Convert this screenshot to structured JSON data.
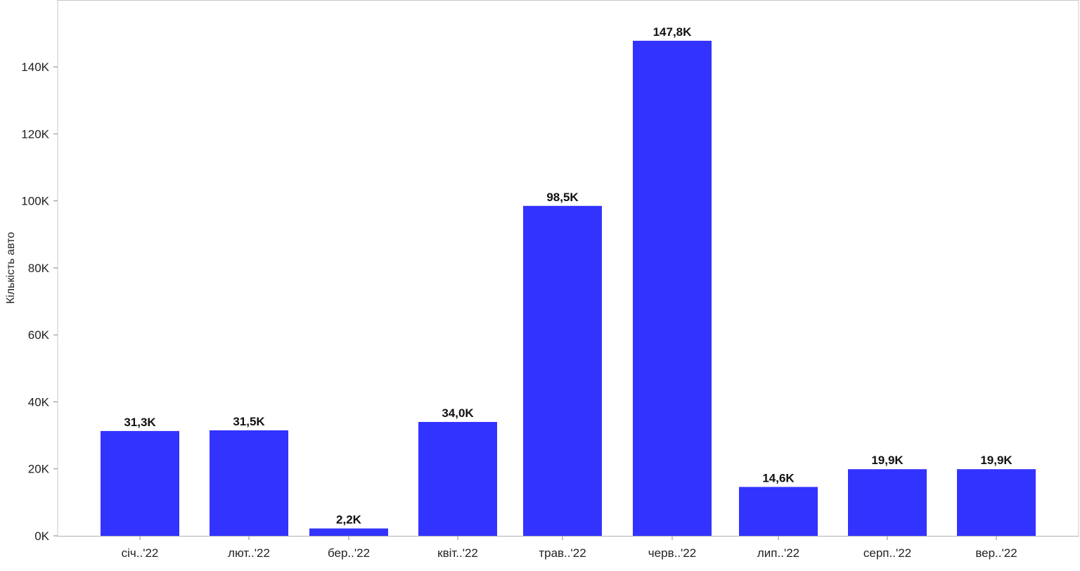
{
  "chart_data": {
    "type": "bar",
    "title": "",
    "xlabel": "",
    "ylabel": "Кількість авто",
    "ylim": [
      0,
      148000
    ],
    "yticks": [
      0,
      20000,
      40000,
      60000,
      80000,
      100000,
      120000,
      140000
    ],
    "ytick_labels": [
      "0K",
      "20K",
      "40K",
      "60K",
      "80K",
      "100K",
      "120K",
      "140K"
    ],
    "categories": [
      "січ..'22",
      "лют..'22",
      "бер..'22",
      "квіт..'22",
      "трав..'22",
      "черв..'22",
      "лип..'22",
      "серп..'22",
      "вер..'22"
    ],
    "values": [
      31300,
      31500,
      2200,
      34000,
      98500,
      147800,
      14600,
      19900,
      19900
    ],
    "data_labels": [
      "31,3K",
      "31,5K",
      "2,2K",
      "34,0K",
      "98,5K",
      "147,8K",
      "14,6K",
      "19,9K",
      "19,9K"
    ],
    "bar_color": "#3333ff",
    "grid": false,
    "legend": "none"
  }
}
